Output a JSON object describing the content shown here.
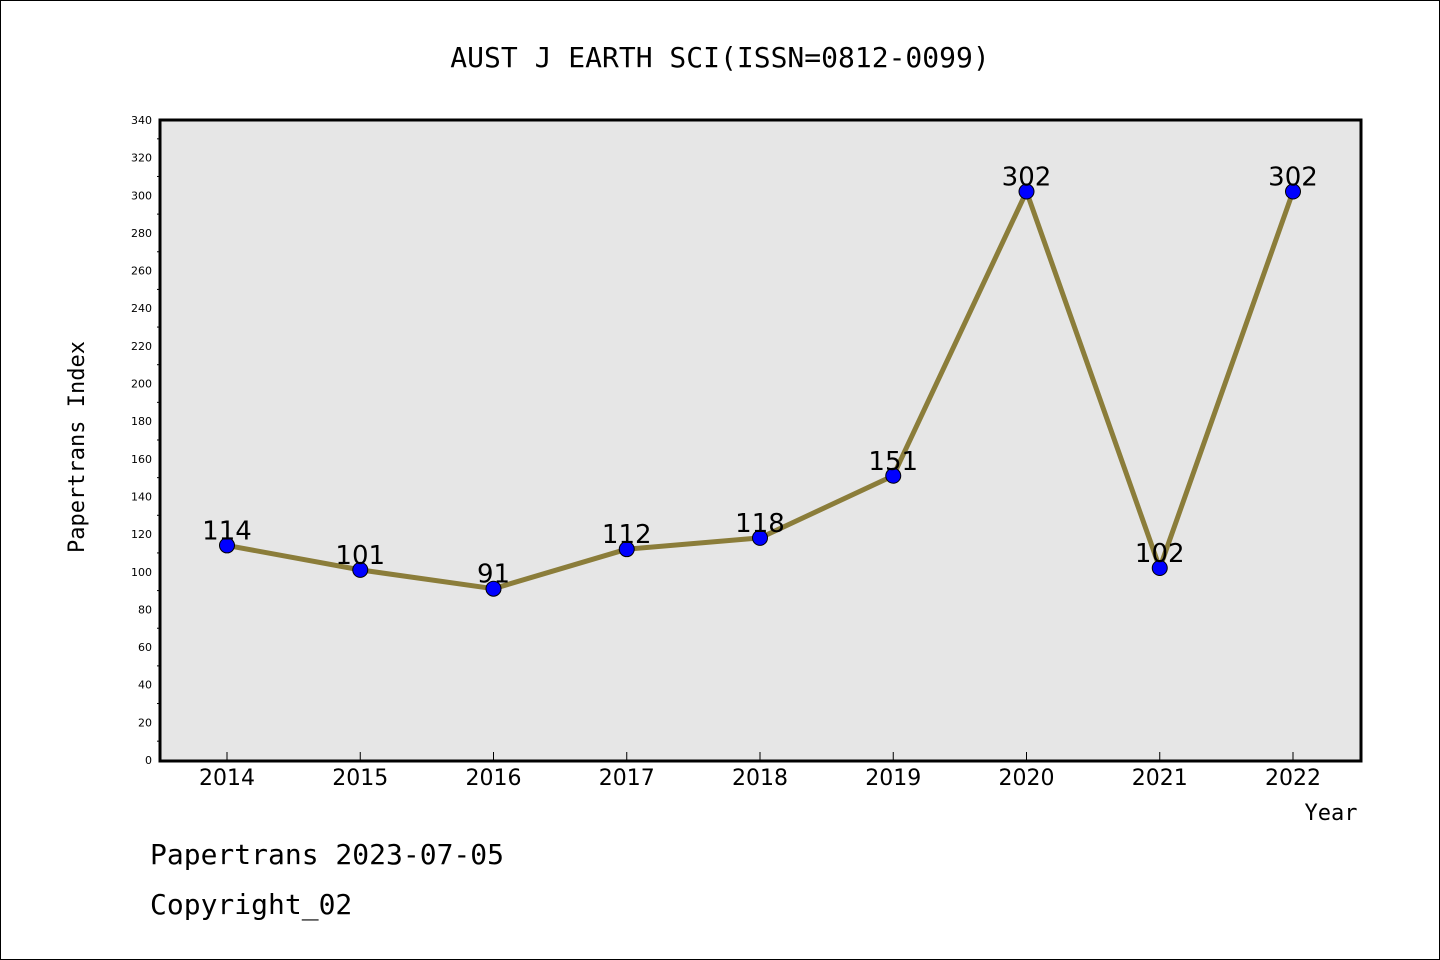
{
  "chart_data": {
    "type": "line",
    "title": "AUST J EARTH SCI(ISSN=0812-0099)",
    "xlabel": "Year",
    "ylabel": "Papertrans Index",
    "categories": [
      "2014",
      "2015",
      "2016",
      "2017",
      "2018",
      "2019",
      "2020",
      "2021",
      "2022"
    ],
    "series": [
      {
        "values": [
          114,
          101,
          91,
          112,
          118,
          151,
          302,
          102,
          302
        ]
      }
    ],
    "ylim": [
      0,
      340
    ],
    "ytick_step": 20,
    "grid": false,
    "line_color": "#8B7D3A",
    "marker_color": "#0000FF",
    "plot_background": "#E6E6E6"
  },
  "footer": {
    "line1": "Papertrans 2023-07-05",
    "line2": "Copyright_02"
  }
}
